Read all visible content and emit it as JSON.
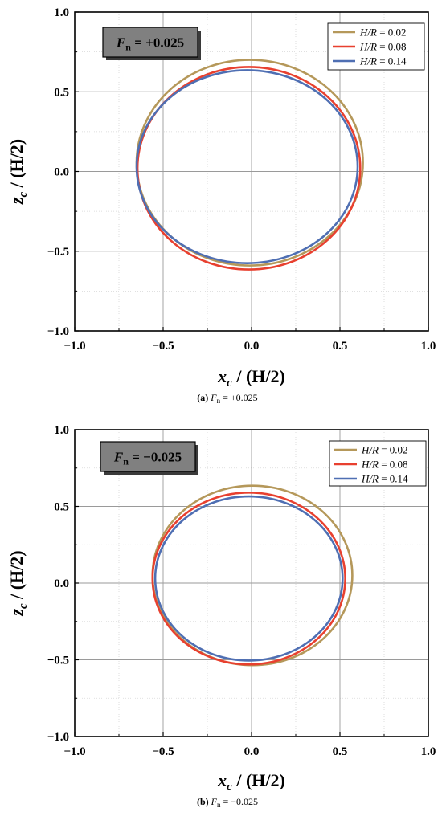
{
  "figure": {
    "xlabel_var": "x",
    "xlabel_sub": "c",
    "xlabel_rest": " / (H/2)",
    "ylabel_var": "z",
    "ylabel_sub": "c",
    "ylabel_rest": " / (H/2)",
    "colors": {
      "H/R = 0.02": "#b5985a",
      "H/R = 0.08": "#e8402f",
      "H/R = 0.14": "#4f6fb3"
    }
  },
  "chart_data": [
    {
      "type": "line",
      "panel": "a",
      "caption_prefix": "(a)",
      "caption_value": "+0.025",
      "fn_label": "= +0.025",
      "xlim": [
        -1.0,
        1.0
      ],
      "ylim": [
        -1.0,
        1.0
      ],
      "x_ticks": [
        "−1.0",
        "−0.5",
        "0.0",
        "0.5",
        "1.0"
      ],
      "y_ticks": [
        "−1.0",
        "−0.5",
        "0.0",
        "0.5",
        "1.0"
      ],
      "grid": true,
      "legend_position": "top-right",
      "series": [
        {
          "name": "H/R = 0.02",
          "hr": "0.02",
          "color": "#b5985a",
          "ellipse": {
            "cx": -0.01,
            "cz": 0.055,
            "rx": 0.64,
            "rz": 0.645
          }
        },
        {
          "name": "H/R = 0.08",
          "hr": "0.08",
          "color": "#e8402f",
          "ellipse": {
            "cx": -0.015,
            "cz": 0.02,
            "rx": 0.63,
            "rz": 0.635
          }
        },
        {
          "name": "H/R = 0.14",
          "hr": "0.14",
          "color": "#4f6fb3",
          "ellipse": {
            "cx": -0.025,
            "cz": 0.03,
            "rx": 0.625,
            "rz": 0.605
          }
        }
      ]
    },
    {
      "type": "line",
      "panel": "b",
      "caption_prefix": "(b)",
      "caption_value": "−0.025",
      "fn_label": "= −0.025",
      "xlim": [
        -1.0,
        1.0
      ],
      "ylim": [
        -1.0,
        1.0
      ],
      "x_ticks": [
        "−1.0",
        "−0.5",
        "0.0",
        "0.5",
        "1.0"
      ],
      "y_ticks": [
        "−1.0",
        "−0.5",
        "0.0",
        "0.5",
        "1.0"
      ],
      "grid": true,
      "legend_position": "top-right",
      "series": [
        {
          "name": "H/R = 0.02",
          "hr": "0.02",
          "color": "#b5985a",
          "ellipse": {
            "cx": 0.005,
            "cz": 0.05,
            "rx": 0.565,
            "rz": 0.585
          }
        },
        {
          "name": "H/R = 0.08",
          "hr": "0.08",
          "color": "#e8402f",
          "ellipse": {
            "cx": -0.015,
            "cz": 0.03,
            "rx": 0.545,
            "rz": 0.56
          }
        },
        {
          "name": "H/R = 0.14",
          "hr": "0.14",
          "color": "#4f6fb3",
          "ellipse": {
            "cx": -0.015,
            "cz": 0.03,
            "rx": 0.53,
            "rz": 0.535
          }
        }
      ]
    }
  ]
}
